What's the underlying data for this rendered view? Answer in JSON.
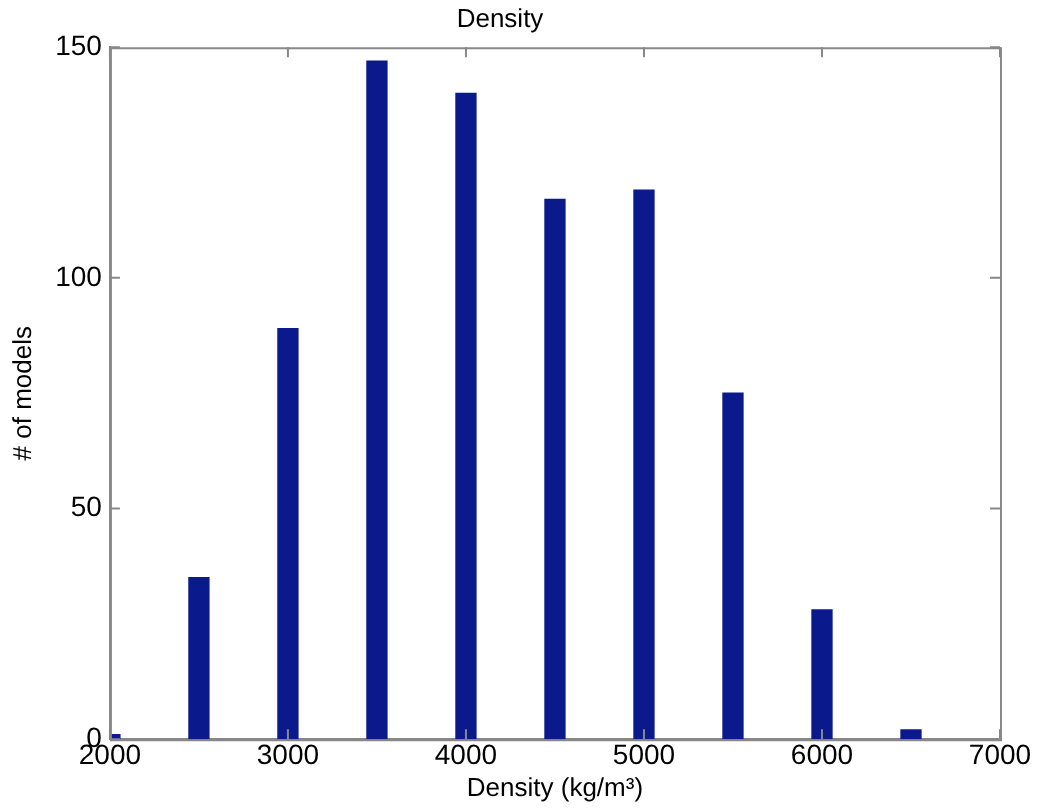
{
  "chart_data": {
    "type": "bar",
    "title": "Density",
    "xlabel": "Density (kg/m³)",
    "ylabel": "# of models",
    "x": [
      2000,
      2500,
      3000,
      3500,
      4000,
      4500,
      5000,
      5500,
      6000,
      6500
    ],
    "values": [
      1,
      35,
      89,
      147,
      140,
      117,
      119,
      75,
      28,
      2
    ],
    "color": "#0a1a8c",
    "xlim": [
      2000,
      7000
    ],
    "xticks": [
      2000,
      3000,
      4000,
      5000,
      6000,
      7000
    ],
    "ylim": [
      0,
      150
    ],
    "yticks": [
      0,
      50,
      100,
      150
    ],
    "grid": false
  }
}
